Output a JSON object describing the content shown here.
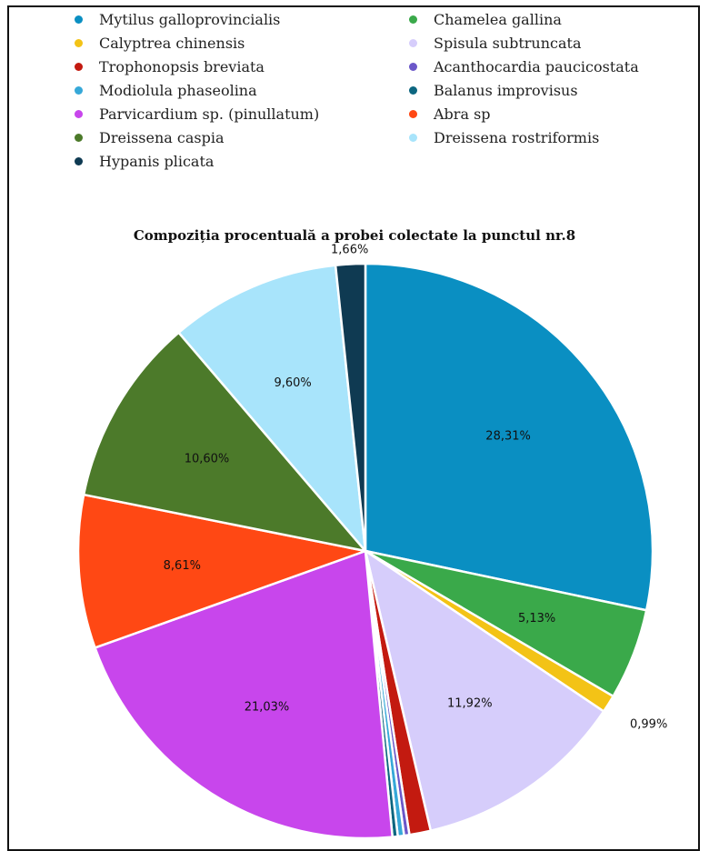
{
  "chart_data": {
    "type": "pie",
    "title": "Compoziția procentuală a probei colectate la punctul nr.8",
    "legend_position": "top",
    "slices": [
      {
        "name": "Mytilus galloprovincialis",
        "value": 28.31,
        "label": "28,31%",
        "color": "#0a8fc2"
      },
      {
        "name": "Chamelea gallina",
        "value": 5.13,
        "label": "5,13%",
        "color": "#3aa94a"
      },
      {
        "name": "Calyptrea chinensis",
        "value": 0.99,
        "label": "0,99%",
        "color": "#f3c316"
      },
      {
        "name": "Spisula subtruncata",
        "value": 11.92,
        "label": "11,92%",
        "color": "#d6cdfb"
      },
      {
        "name": "Trophonopsis breviata",
        "value": 1.2,
        "label": "",
        "color": "#c31a10"
      },
      {
        "name": "Acanthocardia paucicostata",
        "value": 0.3,
        "label": "",
        "color": "#6b57c9"
      },
      {
        "name": "Modiolula phaseolina",
        "value": 0.35,
        "label": "",
        "color": "#36a8d8"
      },
      {
        "name": "Balanus improvisus",
        "value": 0.3,
        "label": "",
        "color": "#0c6680"
      },
      {
        "name": "Parvicardium sp. (pinullatum)",
        "value": 21.03,
        "label": "21,03%",
        "color": "#c846ec"
      },
      {
        "name": "Abra sp",
        "value": 8.61,
        "label": "8,61%",
        "color": "#ff4814"
      },
      {
        "name": "Dreissena caspia",
        "value": 10.6,
        "label": "10,60%",
        "color": "#4c7a2a"
      },
      {
        "name": "Dreissena rostriformis",
        "value": 9.6,
        "label": "9,60%",
        "color": "#a8e4fb"
      },
      {
        "name": "Hypanis plicata",
        "value": 1.66,
        "label": "1,66%",
        "color": "#0f3a52"
      }
    ]
  },
  "legend": [
    {
      "name": "Mytilus galloprovincialis",
      "color": "#0a8fc2"
    },
    {
      "name": "Chamelea gallina",
      "color": "#3aa94a"
    },
    {
      "name": "Calyptrea chinensis",
      "color": "#f3c316"
    },
    {
      "name": "Spisula subtruncata",
      "color": "#d6cdfb"
    },
    {
      "name": "Trophonopsis breviata",
      "color": "#c31a10"
    },
    {
      "name": "Acanthocardia paucicostata",
      "color": "#6b57c9"
    },
    {
      "name": "Modiolula phaseolina",
      "color": "#36a8d8"
    },
    {
      "name": "Balanus improvisus",
      "color": "#0c6680"
    },
    {
      "name": "Parvicardium sp. (pinullatum)",
      "color": "#c846ec"
    },
    {
      "name": "Abra sp",
      "color": "#ff4814"
    },
    {
      "name": "Dreissena caspia",
      "color": "#4c7a2a"
    },
    {
      "name": "Dreissena rostriformis",
      "color": "#a8e4fb"
    },
    {
      "name": "Hypanis plicata",
      "color": "#0f3a52"
    }
  ]
}
